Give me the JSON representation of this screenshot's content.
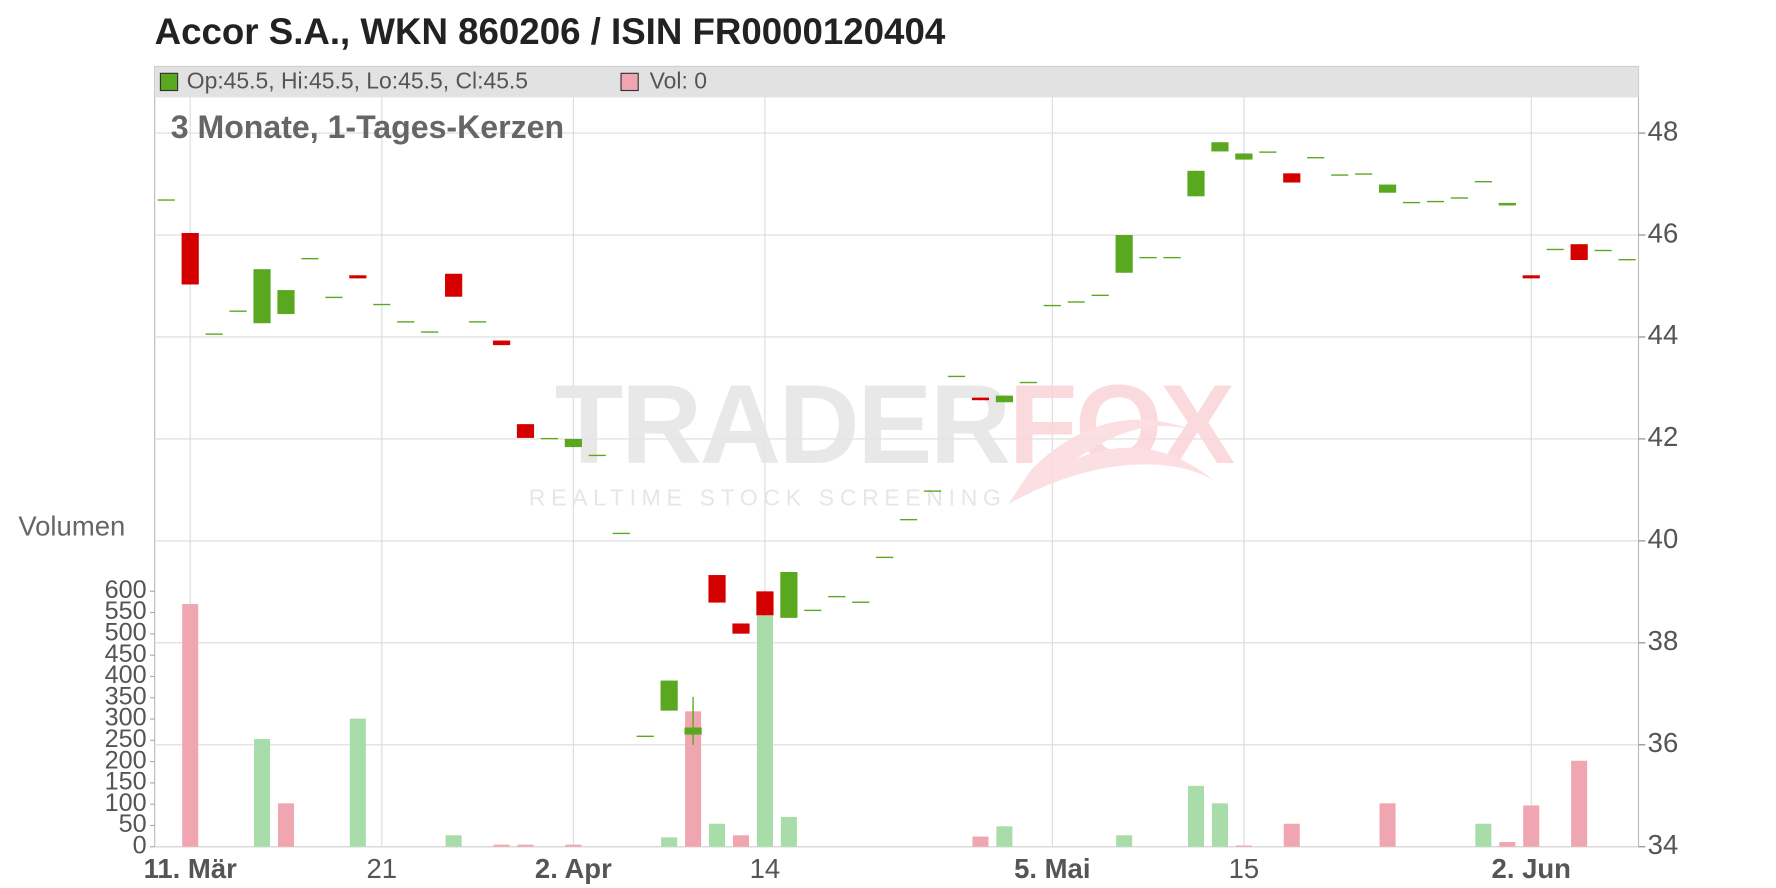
{
  "chart_data": {
    "type": "candlestick",
    "title": "Accor S.A., WKN 860206 / ISIN FR0000120404",
    "subtitle": "3 Monate, 1-Tages-Kerzen",
    "legend_price": "Op:45.5, Hi:45.5, Lo:45.5, Cl:45.5",
    "legend_volume": "Vol: 0",
    "y2_label": "Volumen",
    "watermark": {
      "brand_first": "TRADER",
      "brand_second": "FOX",
      "tagline": "REALTIME STOCK SCREENING"
    },
    "categories": [
      null,
      "11. Mär",
      null,
      null,
      null,
      null,
      null,
      null,
      null,
      "21",
      null,
      null,
      null,
      null,
      null,
      null,
      null,
      "2. Apr",
      null,
      null,
      null,
      null,
      null,
      null,
      null,
      "14",
      null,
      null,
      null,
      null,
      null,
      null,
      null,
      null,
      null,
      null,
      null,
      "5. Mai",
      null,
      null,
      null,
      null,
      null,
      null,
      null,
      "15",
      null,
      null,
      null,
      null,
      null,
      null,
      null,
      null,
      null,
      null,
      null,
      "2. Jun",
      null,
      null,
      null,
      null
    ],
    "open": [
      46.7,
      46.04,
      44.07,
      44.52,
      44.27,
      44.45,
      45.55,
      44.79,
      45.21,
      44.65,
      44.31,
      44.11,
      45.24,
      44.31,
      43.93,
      42.29,
      42.02,
      41.84,
      41.69,
      40.16,
      36.18,
      36.67,
      36.2,
      39.33,
      38.38,
      39.01,
      38.49,
      38.65,
      38.92,
      38.81,
      39.69,
      40.43,
      40.99,
      43.24,
      42.81,
      42.72,
      43.12,
      44.63,
      44.7,
      44.83,
      45.26,
      45.57,
      45.57,
      46.76,
      47.64,
      47.48,
      47.64,
      47.21,
      47.53,
      47.19,
      47.21,
      46.83,
      46.65,
      46.67,
      46.74,
      47.06,
      46.58,
      45.21,
      45.73,
      45.82,
      45.71,
      45.53
    ],
    "high": [
      46.7,
      46.04,
      44.07,
      44.52,
      45.33,
      44.92,
      45.55,
      44.79,
      45.21,
      44.65,
      44.31,
      44.11,
      45.24,
      44.31,
      43.93,
      42.29,
      42.02,
      42.0,
      41.69,
      40.16,
      36.18,
      37.26,
      36.94,
      39.33,
      38.38,
      39.01,
      39.39,
      38.65,
      38.92,
      38.81,
      39.69,
      40.43,
      40.99,
      43.24,
      42.81,
      42.85,
      43.12,
      44.63,
      44.7,
      44.83,
      46.0,
      45.57,
      45.57,
      47.26,
      47.82,
      47.6,
      47.64,
      47.21,
      47.53,
      47.19,
      47.21,
      46.99,
      46.65,
      46.67,
      46.74,
      47.06,
      46.63,
      45.21,
      45.73,
      45.82,
      45.71,
      45.53
    ],
    "low": [
      46.7,
      45.03,
      44.07,
      44.52,
      44.27,
      44.45,
      45.55,
      44.79,
      45.15,
      44.65,
      44.31,
      44.11,
      44.79,
      44.31,
      43.84,
      42.02,
      42.02,
      41.84,
      41.69,
      40.16,
      36.18,
      36.67,
      36.0,
      38.79,
      38.18,
      38.54,
      38.49,
      38.65,
      38.92,
      38.81,
      39.69,
      40.43,
      40.99,
      43.24,
      42.76,
      42.72,
      43.12,
      44.63,
      44.7,
      44.83,
      45.26,
      45.57,
      45.57,
      46.76,
      47.64,
      47.48,
      47.64,
      47.03,
      47.53,
      47.19,
      47.21,
      46.83,
      46.65,
      46.67,
      46.74,
      47.06,
      46.58,
      45.15,
      45.73,
      45.51,
      45.71,
      45.53
    ],
    "close": [
      46.7,
      45.03,
      44.07,
      44.52,
      45.33,
      44.92,
      45.55,
      44.79,
      45.15,
      44.65,
      44.31,
      44.11,
      44.79,
      44.31,
      43.84,
      42.02,
      42.02,
      42.0,
      41.69,
      40.16,
      36.18,
      37.26,
      36.34,
      38.79,
      38.18,
      38.54,
      39.39,
      38.65,
      38.92,
      38.81,
      39.69,
      40.43,
      40.99,
      43.24,
      42.76,
      42.85,
      43.12,
      44.63,
      44.7,
      44.83,
      46.0,
      45.57,
      45.57,
      47.26,
      47.82,
      47.6,
      47.64,
      47.03,
      47.53,
      47.19,
      47.21,
      46.99,
      46.65,
      46.67,
      46.74,
      47.06,
      46.63,
      45.15,
      45.73,
      45.51,
      45.71,
      45.53
    ],
    "up_color": "#5aa820",
    "down_color": "#d40000",
    "volume": {
      "axis": "y2",
      "values": [
        null,
        570,
        null,
        null,
        253,
        102,
        null,
        null,
        301,
        null,
        null,
        null,
        27,
        null,
        5,
        5,
        null,
        5,
        null,
        null,
        null,
        22,
        318,
        54,
        27,
        543,
        70,
        null,
        null,
        null,
        null,
        null,
        null,
        null,
        24,
        48,
        null,
        null,
        null,
        null,
        27,
        null,
        null,
        143,
        102,
        3,
        null,
        54,
        null,
        null,
        null,
        102,
        null,
        null,
        null,
        54,
        11,
        97,
        null,
        202,
        null,
        null
      ],
      "colors": [
        null,
        "#f0a6b0",
        null,
        null,
        "#a8dca8",
        "#f0a6b0",
        null,
        null,
        "#a8dca8",
        null,
        null,
        null,
        "#a8dca8",
        null,
        "#f0a6b0",
        "#f0a6b0",
        null,
        "#f0a6b0",
        null,
        null,
        null,
        "#a8dca8",
        "#f0a6b0",
        "#a8dca8",
        "#f0a6b0",
        "#a8dca8",
        "#a8dca8",
        null,
        null,
        null,
        null,
        null,
        null,
        null,
        "#f0a6b0",
        "#a8dca8",
        null,
        null,
        null,
        null,
        "#a8dca8",
        null,
        null,
        "#a8dca8",
        "#a8dca8",
        "#f0a6b0",
        null,
        "#f0a6b0",
        null,
        null,
        null,
        "#f0a6b0",
        null,
        null,
        null,
        "#a8dca8",
        "#f0a6b0",
        "#f0a6b0",
        null,
        "#f0a6b0",
        null,
        null
      ]
    },
    "ylim": [
      34,
      48.7
    ],
    "yticks": [
      34,
      36,
      38,
      40,
      42,
      44,
      46,
      48
    ],
    "y2lim": [
      0,
      1760
    ],
    "y2ticks": [
      0,
      50,
      100,
      150,
      200,
      250,
      300,
      350,
      400,
      450,
      500,
      550,
      600
    ],
    "grid": true
  }
}
